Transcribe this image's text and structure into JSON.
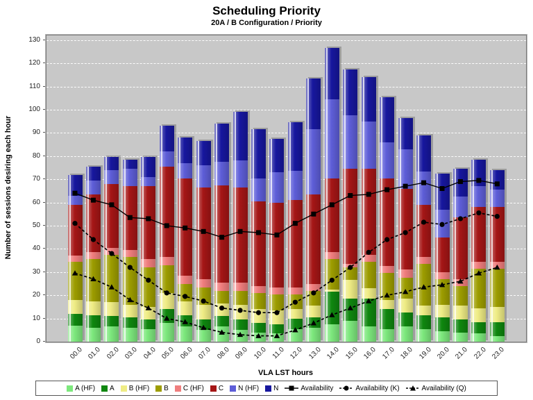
{
  "chart_data": {
    "type": "bar",
    "stacked": true,
    "title": "Scheduling Priority",
    "subtitle": "20A / B Configuration /  Priority",
    "xlabel": "VLA LST hours",
    "ylabel": "Number of sessions desiring each hour",
    "ylim": [
      0,
      130
    ],
    "ytick_step": 10,
    "grid": "horizontal-dashed-white",
    "plot_background": "#C8C8C8",
    "legend_position": "bottom",
    "categories": [
      "00.0",
      "01.0",
      "02.0",
      "03.0",
      "04.0",
      "05.0",
      "06.0",
      "07.0",
      "08.0",
      "09.0",
      "10.0",
      "11.0",
      "12.0",
      "13.0",
      "14.0",
      "15.0",
      "16.0",
      "17.0",
      "18.0",
      "19.0",
      "20.0",
      "21.0",
      "22.0",
      "23.0"
    ],
    "bar_series": [
      {
        "name": "A (HF)",
        "color": "#7DE87D",
        "values": [
          7,
          6,
          6.5,
          6,
          5.5,
          8,
          6.5,
          5,
          6.5,
          5,
          4,
          3.5,
          5.5,
          6,
          7.5,
          9,
          6.5,
          5.5,
          6.5,
          5.5,
          4.5,
          4,
          3.5,
          2.5
        ]
      },
      {
        "name": "A",
        "color": "#0F870F",
        "values": [
          5,
          5.5,
          4.5,
          4.5,
          4,
          6,
          5,
          4.5,
          4.5,
          4.5,
          4,
          4,
          4.5,
          4.5,
          14,
          9.5,
          12,
          8.5,
          6,
          6,
          6,
          5.5,
          5,
          6
        ]
      },
      {
        "name": "B (HF)",
        "color": "#EFEC85",
        "values": [
          6,
          6,
          6,
          5.5,
          5.5,
          7,
          6,
          6.5,
          5.5,
          6.5,
          6,
          6,
          4,
          5,
          1,
          8,
          4.5,
          4,
          6,
          4,
          5.5,
          6,
          6,
          6.5
        ]
      },
      {
        "name": "B",
        "color": "#9D9D00",
        "values": [
          16.5,
          18,
          20.5,
          20.5,
          17,
          12,
          7.5,
          7.5,
          5.5,
          6,
          7,
          7,
          6.5,
          6.5,
          13,
          5.5,
          11.5,
          11.5,
          9,
          18,
          11,
          8.5,
          17,
          16.5
        ]
      },
      {
        "name": "C (HF)",
        "color": "#F07E7E",
        "values": [
          2.5,
          3,
          3,
          3,
          3.5,
          3.5,
          3.5,
          3.5,
          3.5,
          3.5,
          3,
          3,
          3,
          3,
          3,
          1.5,
          3,
          3,
          3.5,
          3,
          3,
          3,
          3,
          3
        ]
      },
      {
        "name": "C",
        "color": "#A51616",
        "values": [
          22,
          25,
          27.5,
          27.5,
          31.5,
          39,
          42,
          39.5,
          42,
          41,
          36.5,
          36.5,
          37.5,
          38.5,
          32,
          41,
          37,
          38,
          35,
          22.5,
          15,
          26.5,
          23.5,
          23.5
        ]
      },
      {
        "name": "N (HF)",
        "color": "#5E5ED8",
        "values": [
          4,
          6,
          6,
          7.5,
          4,
          6.5,
          6.5,
          9.5,
          10,
          11.5,
          10,
          13,
          12.5,
          28,
          34,
          23,
          20.5,
          15.5,
          17,
          14.5,
          12,
          9,
          9,
          7.5
        ]
      },
      {
        "name": "N",
        "color": "#17179E",
        "values": [
          9,
          6,
          5.5,
          4,
          8.5,
          11,
          11,
          10.5,
          16.5,
          21,
          21,
          14.5,
          21,
          22,
          22,
          20,
          19,
          19.5,
          13.5,
          15.5,
          15.5,
          12,
          11.5,
          8.5
        ]
      }
    ],
    "line_series": [
      {
        "name": "Availability",
        "color": "#000000",
        "marker": "square",
        "dashed": false,
        "values": [
          64,
          61,
          59,
          53.5,
          53,
          50,
          49,
          47.5,
          45,
          47.5,
          47,
          46,
          51,
          55,
          59,
          63,
          63.5,
          65.5,
          67,
          68.5,
          66,
          69,
          69.5,
          68
        ]
      },
      {
        "name": "Availability (K)",
        "color": "#000000",
        "marker": "circle",
        "dashed": true,
        "values": [
          51,
          44,
          38,
          32,
          26.5,
          21,
          19.5,
          17.5,
          14.5,
          13.5,
          12.5,
          12.5,
          17,
          21,
          26.5,
          32,
          38.5,
          44,
          47,
          51.5,
          50.5,
          53,
          55.5,
          54
        ]
      },
      {
        "name": "Availability (Q)",
        "color": "#000000",
        "marker": "triangle",
        "dashed": true,
        "values": [
          29.5,
          27,
          23.5,
          18,
          14.5,
          10,
          8.5,
          6,
          4,
          3,
          2.5,
          2.5,
          5,
          8,
          11.5,
          14.5,
          17.5,
          20,
          21.5,
          23.5,
          24.5,
          26,
          29.5,
          32
        ]
      }
    ]
  }
}
